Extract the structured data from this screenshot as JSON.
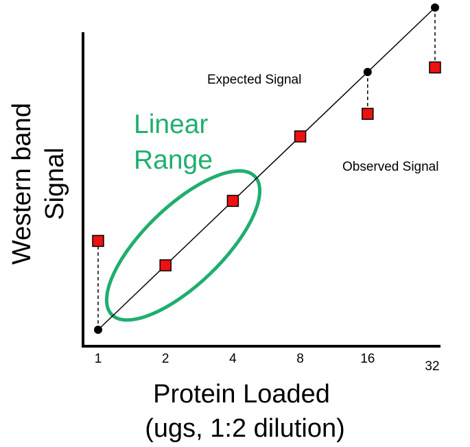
{
  "chart_data": {
    "type": "scatter",
    "title": "",
    "xlabel_lines": [
      "Protein Loaded",
      "(ugs, 1:2 dilution)"
    ],
    "ylabel_lines": [
      "Western band",
      "Signal"
    ],
    "x_scale": "log2",
    "x_ticks": [
      {
        "value": 1,
        "label": "1"
      },
      {
        "value": 2,
        "label": "2"
      },
      {
        "value": 4,
        "label": "4"
      },
      {
        "value": 8,
        "label": "8"
      },
      {
        "value": 16,
        "label": "16"
      },
      {
        "value": 32,
        "label": "32"
      }
    ],
    "expected_series": {
      "marker": "circle",
      "color": "#000000",
      "points": [
        {
          "x": 1,
          "y": 1
        },
        {
          "x": 16,
          "y": 16
        },
        {
          "x": 32,
          "y": 32
        }
      ]
    },
    "observed_series": {
      "marker": "square",
      "color": "#ee1111",
      "points": [
        {
          "x": 1,
          "y": 2.6
        },
        {
          "x": 2,
          "y": 2
        },
        {
          "x": 4,
          "y": 4
        },
        {
          "x": 8,
          "y": 8
        },
        {
          "x": 16,
          "y": 10.2
        },
        {
          "x": 32,
          "y": 16.8
        }
      ]
    },
    "annotations": {
      "expected": "Expected Signal",
      "observed": "Observed Signal",
      "linear_range_lines": [
        "Linear",
        "Range"
      ]
    },
    "linear_range_color": "#1fae6e",
    "grid": false,
    "legend": "none"
  }
}
